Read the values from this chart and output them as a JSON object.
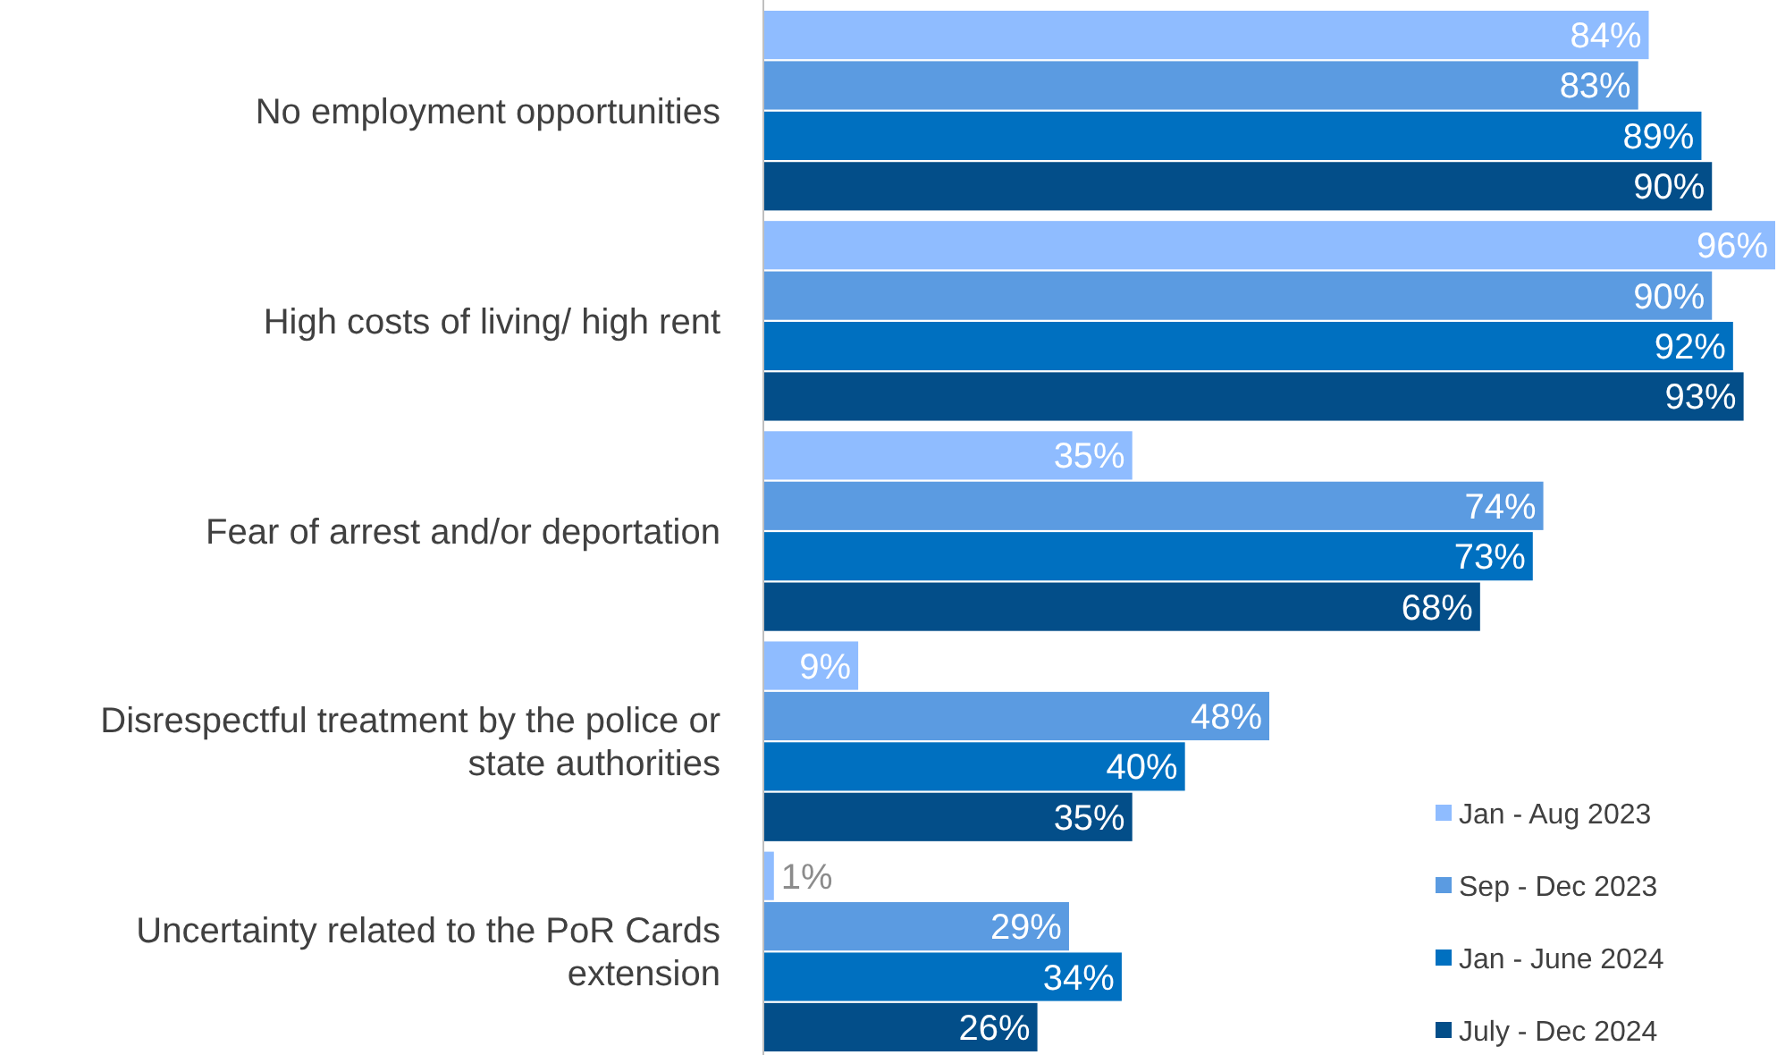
{
  "chart_data": {
    "type": "bar",
    "orientation": "horizontal",
    "legend": "bottom right",
    "categories": [
      "No employment opportunities",
      "High costs of living/ high rent",
      "Fear of arrest and/or deportation",
      "Disrespectful treatment by the police or state authorities",
      "Uncertainty related to the PoR Cards extension"
    ],
    "series": [
      {
        "name": "Jan - Aug 2023",
        "color": "#8fbcff",
        "values": [
          84,
          96,
          35,
          9,
          1
        ],
        "value_labels": [
          "84%",
          "96%",
          "35%",
          "9%",
          "1%"
        ]
      },
      {
        "name": "Sep - Dec 2023",
        "color": "#5b9be1",
        "values": [
          83,
          90,
          74,
          48,
          29
        ],
        "value_labels": [
          "83%",
          "90%",
          "74%",
          "48%",
          "29%"
        ]
      },
      {
        "name": "Jan - June 2024",
        "color": "#0070c0",
        "values": [
          89,
          92,
          73,
          40,
          34
        ],
        "value_labels": [
          "89%",
          "92%",
          "73%",
          "40%",
          "34%"
        ]
      },
      {
        "name": "July - Dec 2024",
        "color": "#034e89",
        "values": [
          90,
          93,
          68,
          35,
          26
        ],
        "value_labels": [
          "90%",
          "93%",
          "68%",
          "35%",
          "26%"
        ]
      }
    ]
  }
}
